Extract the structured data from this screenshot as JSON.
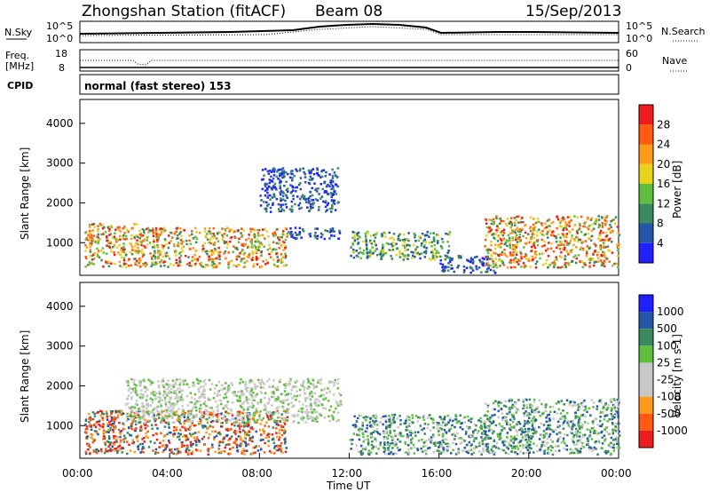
{
  "header": {
    "station": "Zhongshan Station (fitACF)",
    "beam": "Beam 08",
    "date": "15/Sep/2013"
  },
  "noise_panel": {
    "left_label": "N.Sky",
    "right_label": "N.Search",
    "left_ticks": [
      "10^5",
      "10^0"
    ],
    "right_ticks": [
      "10^5",
      "10^0"
    ]
  },
  "freq_panel": {
    "left_label_1": "Freq.",
    "left_label_2": "[MHz]",
    "right_label": "Nave",
    "left_ticks": [
      "18",
      "8"
    ],
    "right_ticks": [
      "60",
      "0"
    ]
  },
  "cpid_panel": {
    "label": "CPID",
    "text": "normal (fast stereo) 153"
  },
  "x_axis": {
    "title": "Time UT",
    "ticks": [
      "00:00",
      "04:00",
      "08:00",
      "12:00",
      "16:00",
      "20:00",
      "00:00"
    ]
  },
  "colors": {
    "power_scale": [
      "#1f1fff",
      "#2457a8",
      "#3a8a5e",
      "#5fbf3f",
      "#e8d21a",
      "#ff9a1a",
      "#ff5a10",
      "#ee1c1c"
    ],
    "velocity_scale": [
      "#ee1c1c",
      "#ff5a10",
      "#ff9a1a",
      "#c8c8c8",
      "#c8c8c8",
      "#5fbf3f",
      "#3a8a5e",
      "#2457a8",
      "#1f1fff"
    ]
  },
  "chart_data": [
    {
      "type": "heatmap",
      "title": "Power",
      "xlabel": "Time UT",
      "ylabel": "Slant Range [km]",
      "ylim": [
        180,
        4600
      ],
      "y_ticks": [
        "4000",
        "3000",
        "2000",
        "1000"
      ],
      "colorbar_label": "Power [dB]",
      "colorbar_ticks": [
        "28",
        "24",
        "20",
        "16",
        "12",
        "8",
        "4"
      ],
      "regions": [
        {
          "t": [
            0.2,
            2.5
          ],
          "r": [
            400,
            1500
          ],
          "level": "high"
        },
        {
          "t": [
            2.5,
            9.2
          ],
          "r": [
            400,
            1400
          ],
          "level": "high"
        },
        {
          "t": [
            9.2,
            11.6
          ],
          "r": [
            1100,
            1400
          ],
          "level": "low"
        },
        {
          "t": [
            12.0,
            16.5
          ],
          "r": [
            600,
            1300
          ],
          "level": "mid"
        },
        {
          "t": [
            16.0,
            18.5
          ],
          "r": [
            250,
            700
          ],
          "level": "low"
        },
        {
          "t": [
            18.0,
            24.0
          ],
          "r": [
            400,
            1700
          ],
          "level": "high"
        },
        {
          "t": [
            8.0,
            11.5
          ],
          "r": [
            1800,
            2900
          ],
          "level": "low"
        }
      ]
    },
    {
      "type": "heatmap",
      "title": "Velocity",
      "xlabel": "Time UT",
      "ylabel": "Slant Range [km]",
      "ylim": [
        180,
        4600
      ],
      "y_ticks": [
        "4000",
        "3000",
        "2000",
        "1000"
      ],
      "colorbar_label": "Velocity [m s-1]",
      "colorbar_ticks": [
        "1000",
        "500",
        "100",
        "25",
        "-25",
        "-100",
        "-500",
        "-1000"
      ],
      "regions": [
        {
          "t": [
            0.2,
            9.2
          ],
          "r": [
            300,
            1400
          ],
          "level": "negative"
        },
        {
          "t": [
            2.0,
            11.6
          ],
          "r": [
            1100,
            2200
          ],
          "level": "near-zero"
        },
        {
          "t": [
            12.0,
            18.5
          ],
          "r": [
            300,
            1300
          ],
          "level": "positive"
        },
        {
          "t": [
            18.0,
            24.0
          ],
          "r": [
            300,
            1700
          ],
          "level": "positive"
        }
      ]
    }
  ]
}
